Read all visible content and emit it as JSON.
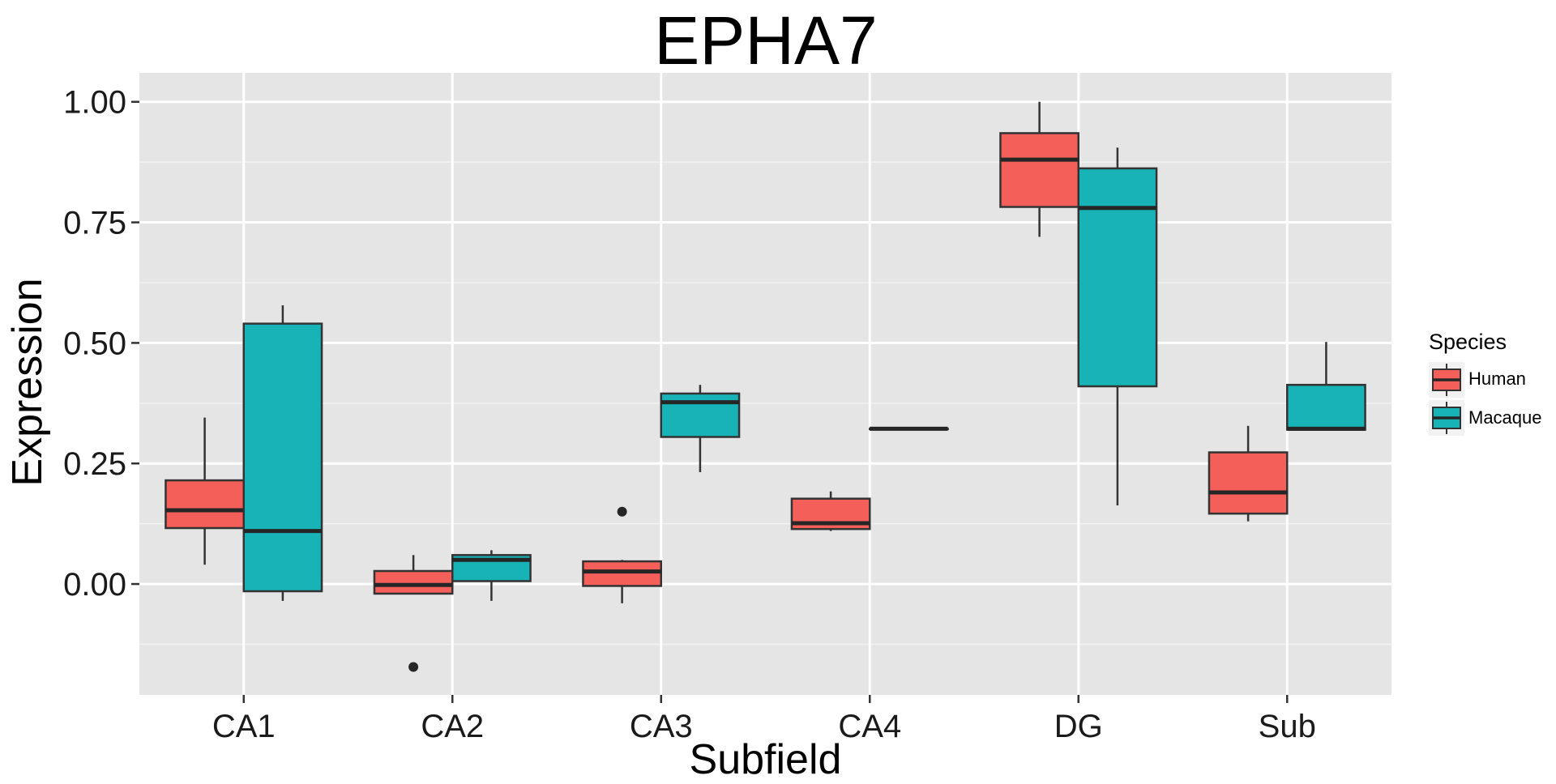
{
  "chart_data": {
    "type": "boxplot",
    "title": "EPHA7",
    "xlabel": "Subfield",
    "ylabel": "Expression",
    "categories": [
      "CA1",
      "CA2",
      "CA3",
      "CA4",
      "DG",
      "Sub"
    ],
    "ylim": [
      -0.23,
      1.06
    ],
    "yticks": [
      0.0,
      0.25,
      0.5,
      0.75,
      1.0
    ],
    "ytick_labels": [
      "0.00",
      "0.25",
      "0.50",
      "0.75",
      "1.00"
    ],
    "grid": true,
    "legend": {
      "title": "Species",
      "position": "right"
    },
    "series": [
      {
        "name": "Human",
        "color": "#F45F5A",
        "boxes": [
          {
            "category": "CA1",
            "whisker_low": 0.04,
            "q1": 0.116,
            "median": 0.153,
            "q3": 0.215,
            "whisker_high": 0.345,
            "outliers": []
          },
          {
            "category": "CA2",
            "whisker_low": -0.02,
            "q1": -0.02,
            "median": -0.002,
            "q3": 0.027,
            "whisker_high": 0.06,
            "outliers": [
              -0.172
            ]
          },
          {
            "category": "CA3",
            "whisker_low": -0.04,
            "q1": -0.004,
            "median": 0.026,
            "q3": 0.047,
            "whisker_high": 0.05,
            "outliers": [
              0.15
            ]
          },
          {
            "category": "CA4",
            "whisker_low": 0.11,
            "q1": 0.114,
            "median": 0.126,
            "q3": 0.177,
            "whisker_high": 0.192,
            "outliers": []
          },
          {
            "category": "DG",
            "whisker_low": 0.72,
            "q1": 0.782,
            "median": 0.88,
            "q3": 0.935,
            "whisker_high": 1.0,
            "outliers": []
          },
          {
            "category": "Sub",
            "whisker_low": 0.13,
            "q1": 0.146,
            "median": 0.19,
            "q3": 0.273,
            "whisker_high": 0.328,
            "outliers": []
          }
        ]
      },
      {
        "name": "Macaque",
        "color": "#17B3B7",
        "boxes": [
          {
            "category": "CA1",
            "whisker_low": -0.035,
            "q1": -0.015,
            "median": 0.11,
            "q3": 0.54,
            "whisker_high": 0.578,
            "outliers": []
          },
          {
            "category": "CA2",
            "whisker_low": -0.035,
            "q1": 0.006,
            "median": 0.05,
            "q3": 0.06,
            "whisker_high": 0.07,
            "outliers": []
          },
          {
            "category": "CA3",
            "whisker_low": 0.232,
            "q1": 0.305,
            "median": 0.377,
            "q3": 0.395,
            "whisker_high": 0.413,
            "outliers": []
          },
          {
            "category": "CA4",
            "whisker_low": 0.322,
            "q1": 0.322,
            "median": 0.322,
            "q3": 0.322,
            "whisker_high": 0.322,
            "outliers": []
          },
          {
            "category": "DG",
            "whisker_low": 0.163,
            "q1": 0.41,
            "median": 0.78,
            "q3": 0.862,
            "whisker_high": 0.905,
            "outliers": []
          },
          {
            "category": "Sub",
            "whisker_low": 0.32,
            "q1": 0.32,
            "median": 0.322,
            "q3": 0.413,
            "whisker_high": 0.502,
            "outliers": []
          }
        ]
      }
    ]
  }
}
